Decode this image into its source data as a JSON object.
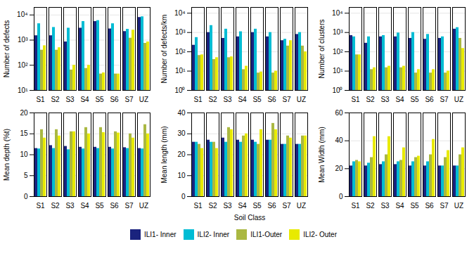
{
  "chart_data": [
    {
      "type": "bar",
      "ylabel": "Number of defects",
      "log": "y",
      "grid": true,
      "legend": "bottom",
      "categories": [
        "S1",
        "S2",
        "S3",
        "S4",
        "S5",
        "S6",
        "S7",
        "UZ"
      ],
      "ylim": [
        10,
        20000
      ],
      "yticks": [
        {
          "value": 10,
          "label": "10¹"
        },
        {
          "value": 100,
          "label": "10²"
        },
        {
          "value": 1000,
          "label": "10³"
        },
        {
          "value": 10000,
          "label": "10⁴"
        }
      ],
      "series": [
        {
          "name": "ILI1- Inner",
          "color": "#1a237e",
          "values": [
            1500,
            1500,
            850,
            3000,
            5500,
            2800,
            2200,
            8000
          ]
        },
        {
          "name": "ILI2- Inner",
          "color": "#00bcd4",
          "values": [
            4500,
            3200,
            3000,
            5500,
            6000,
            4500,
            2700,
            8500
          ]
        },
        {
          "name": "ILI1-Outer",
          "color": "#aab842",
          "values": [
            400,
            400,
            65,
            75,
            45,
            45,
            1200,
            750
          ]
        },
        {
          "name": "ILI2- Outer",
          "color": "#e8ea00",
          "values": [
            600,
            500,
            100,
            100,
            50,
            45,
            2500,
            850
          ]
        }
      ]
    },
    {
      "type": "bar",
      "ylabel": "Number of defects/km",
      "log": "y",
      "grid": true,
      "categories": [
        "S1",
        "S2",
        "S3",
        "S4",
        "S5",
        "S6",
        "S7",
        "UZ"
      ],
      "ylim": [
        1,
        20000
      ],
      "yticks": [
        {
          "value": 1,
          "label": "10⁰"
        },
        {
          "value": 10,
          "label": "10¹"
        },
        {
          "value": 100,
          "label": "10²"
        },
        {
          "value": 1000,
          "label": "10³"
        },
        {
          "value": 10000,
          "label": "10⁴"
        }
      ],
      "series": [
        {
          "name": "ILI1- Inner",
          "color": "#1a237e",
          "values": [
            220,
            1000,
            500,
            600,
            1000,
            600,
            380,
            800
          ]
        },
        {
          "name": "ILI2- Inner",
          "color": "#00bcd4",
          "values": [
            550,
            2300,
            1500,
            1100,
            1500,
            1000,
            450,
            1000
          ]
        },
        {
          "name": "ILI1-Outer",
          "color": "#aab842",
          "values": [
            65,
            40,
            50,
            12,
            8,
            8,
            200,
            200
          ]
        },
        {
          "name": "ILI2- Outer",
          "color": "#e8ea00",
          "values": [
            70,
            50,
            55,
            18,
            9,
            10,
            380,
            100
          ]
        }
      ]
    },
    {
      "type": "bar",
      "ylabel": "Number of clusters",
      "log": "y",
      "grid": true,
      "categories": [
        "S1",
        "S2",
        "S3",
        "S4",
        "S5",
        "S6",
        "S7",
        "UZ"
      ],
      "ylim": [
        1,
        20000
      ],
      "yticks": [
        {
          "value": 1,
          "label": "10⁰"
        },
        {
          "value": 10,
          "label": "10¹"
        },
        {
          "value": 100,
          "label": "10²"
        },
        {
          "value": 1000,
          "label": "10³"
        },
        {
          "value": 10000,
          "label": "10⁴"
        }
      ],
      "series": [
        {
          "name": "ILI1- Inner",
          "color": "#1a237e",
          "values": [
            700,
            280,
            600,
            600,
            500,
            450,
            500,
            1500
          ]
        },
        {
          "name": "ILI2- Inner",
          "color": "#00bcd4",
          "values": [
            600,
            600,
            700,
            950,
            1000,
            800,
            600,
            1800
          ]
        },
        {
          "name": "ILI1-Outer",
          "color": "#aab842",
          "values": [
            70,
            12,
            15,
            15,
            8,
            8,
            8,
            500
          ]
        },
        {
          "name": "ILI2- Outer",
          "color": "#e8ea00",
          "values": [
            70,
            15,
            18,
            18,
            12,
            12,
            10,
            150
          ]
        }
      ]
    },
    {
      "type": "bar",
      "ylabel": "Mean depth (%t)",
      "grid": true,
      "categories": [
        "S1",
        "S2",
        "S3",
        "S4",
        "S5",
        "S6",
        "S7",
        "UZ"
      ],
      "ylim": [
        0,
        20
      ],
      "yticks": [
        0,
        5,
        10,
        15,
        20
      ],
      "series": [
        {
          "name": "ILI1- Inner",
          "color": "#1a237e",
          "values": [
            11.5,
            12.2,
            12.0,
            11.8,
            11.8,
            11.8,
            11.7,
            11.5
          ]
        },
        {
          "name": "ILI2- Inner",
          "color": "#00bcd4",
          "values": [
            11.4,
            11.5,
            11.2,
            11.4,
            11.5,
            11.4,
            11.5,
            11.4
          ]
        },
        {
          "name": "ILI1-Outer",
          "color": "#aab842",
          "values": [
            16.0,
            16.0,
            15.5,
            16.5,
            16.5,
            15.5,
            15.0,
            17.2
          ]
        },
        {
          "name": "ILI2- Outer",
          "color": "#e8ea00",
          "values": [
            14.0,
            14.5,
            15.5,
            15.0,
            15.3,
            15.2,
            14.0,
            15.0
          ]
        }
      ]
    },
    {
      "type": "bar",
      "ylabel": "Mean length (mm)",
      "xlabel": "Soil Class",
      "grid": true,
      "categories": [
        "S1",
        "S2",
        "S3",
        "S4",
        "S5",
        "S6",
        "S7",
        "UZ"
      ],
      "ylim": [
        0,
        40
      ],
      "yticks": [
        0,
        10,
        20,
        30,
        40
      ],
      "series": [
        {
          "name": "ILI1- Inner",
          "color": "#1a237e",
          "values": [
            26,
            27,
            28,
            27,
            27,
            27,
            25,
            25
          ]
        },
        {
          "name": "ILI2- Inner",
          "color": "#00bcd4",
          "values": [
            26,
            26,
            26,
            26,
            26,
            27,
            25,
            25
          ]
        },
        {
          "name": "ILI1-Outer",
          "color": "#aab842",
          "values": [
            25,
            26,
            33,
            29,
            25,
            35,
            29,
            29
          ]
        },
        {
          "name": "ILI2- Outer",
          "color": "#e8ea00",
          "values": [
            23,
            23,
            32,
            30,
            32,
            32,
            28,
            29
          ]
        }
      ]
    },
    {
      "type": "bar",
      "ylabel": "Mean Width (mm)",
      "grid": true,
      "categories": [
        "S1",
        "S2",
        "S3",
        "S4",
        "S5",
        "S6",
        "S7",
        "UZ"
      ],
      "ylim": [
        0,
        60
      ],
      "yticks": [
        0,
        20,
        40,
        60
      ],
      "series": [
        {
          "name": "ILI1- Inner",
          "color": "#1a237e",
          "values": [
            22,
            22,
            23,
            23,
            22,
            22,
            22,
            22
          ]
        },
        {
          "name": "ILI2- Inner",
          "color": "#00bcd4",
          "values": [
            25,
            24,
            25,
            25,
            25,
            25,
            22,
            22
          ]
        },
        {
          "name": "ILI1-Outer",
          "color": "#aab842",
          "values": [
            26,
            28,
            30,
            26,
            28,
            30,
            28,
            30
          ]
        },
        {
          "name": "ILI2- Outer",
          "color": "#e8ea00",
          "values": [
            25,
            43,
            43,
            35,
            29,
            41,
            33,
            35
          ]
        }
      ]
    }
  ]
}
